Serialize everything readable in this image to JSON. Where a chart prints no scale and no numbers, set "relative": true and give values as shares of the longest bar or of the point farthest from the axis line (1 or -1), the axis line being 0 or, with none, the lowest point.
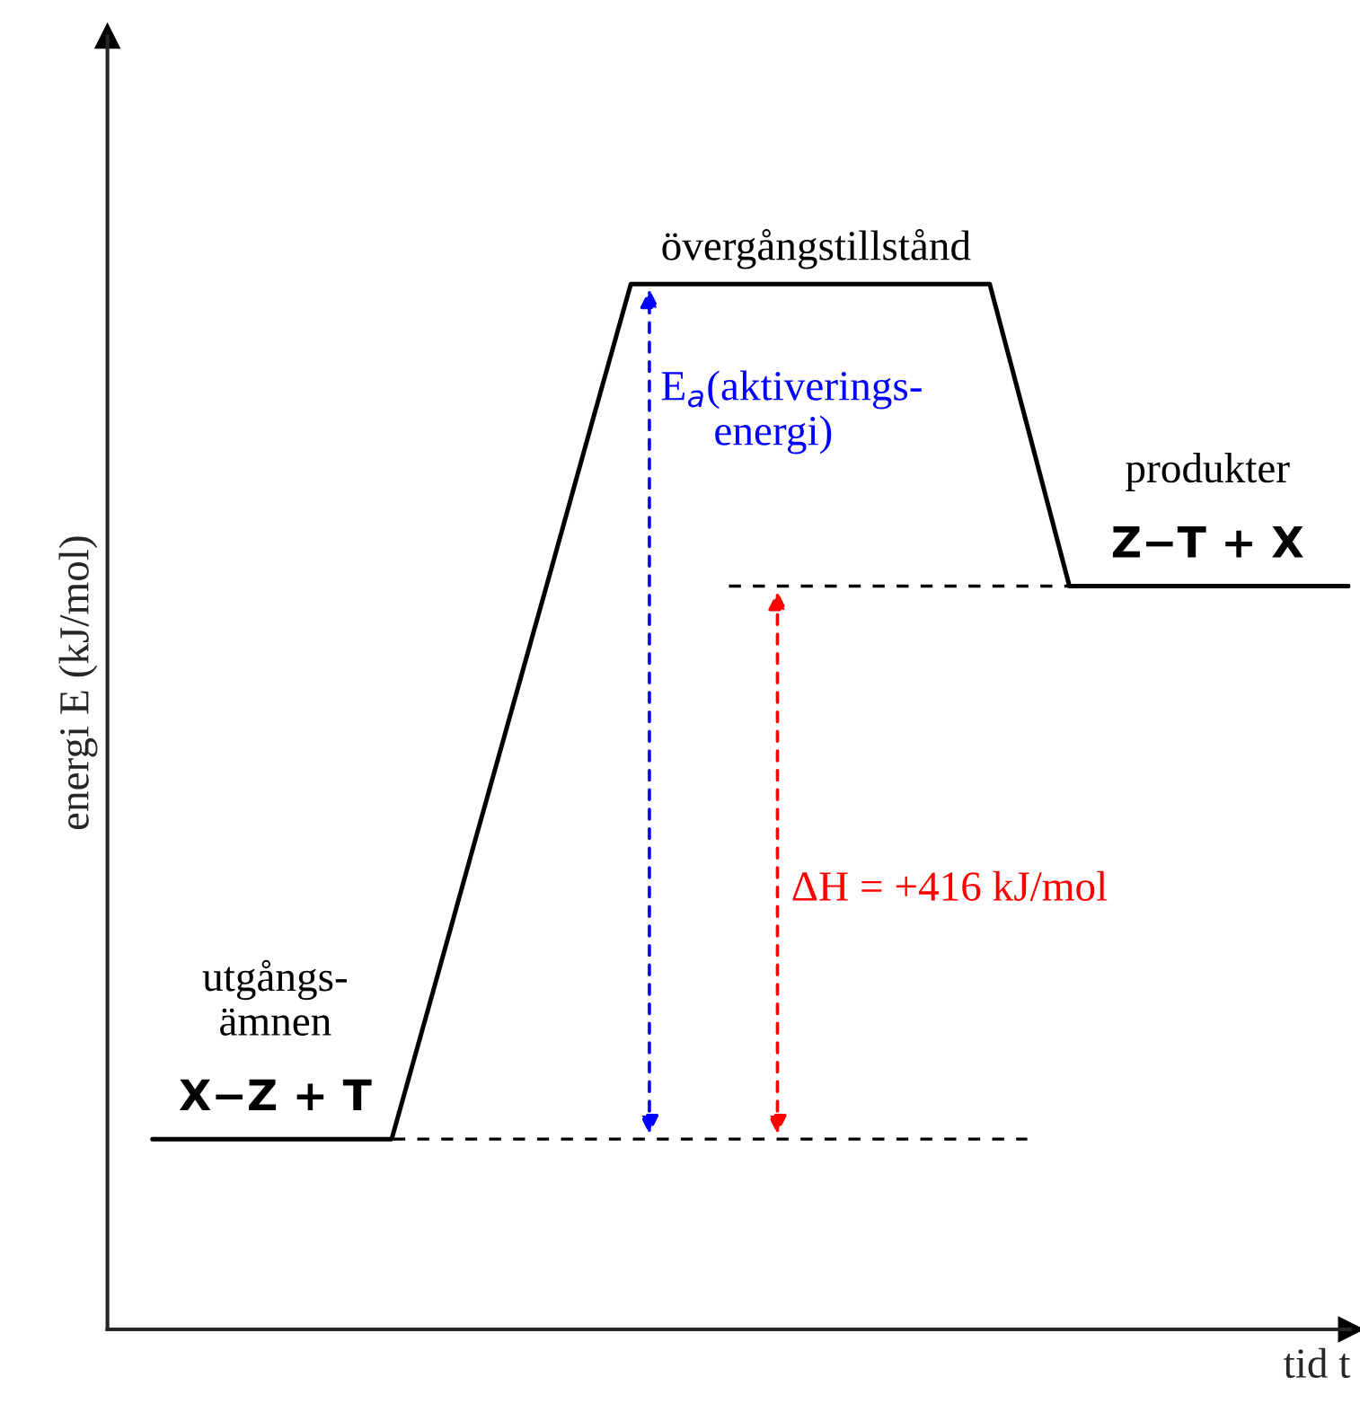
{
  "chart_data": {
    "type": "line",
    "relative": true,
    "color": "#000000",
    "categories": [
      null,
      null,
      null,
      null,
      null,
      null,
      null,
      null,
      null,
      null,
      null,
      null,
      null,
      null,
      null,
      null,
      null,
      null,
      null,
      null,
      null,
      null,
      null,
      null,
      null,
      null,
      null,
      null,
      null,
      null,
      null
    ],
    "values": [
      0.182,
      0.182,
      0.182,
      0.182,
      0.182,
      0.182,
      0.182,
      0.318,
      0.455,
      0.591,
      0.727,
      0.864,
      1,
      1,
      1,
      1,
      1,
      1,
      1,
      1,
      1,
      1,
      0.856,
      0.711,
      0.711,
      0.711,
      0.711,
      0.711,
      0.711,
      0.711,
      0.711
    ],
    "xlabel": "tid t",
    "ylabel": "energi E (kJ/mol)",
    "ref_lines": [
      {
        "axis": "y",
        "value": 0.182,
        "color": "#000000",
        "line_style": "dashed"
      },
      {
        "axis": "y",
        "value": 0.711,
        "color": "#000000",
        "line_style": "dashed"
      }
    ],
    "annotations": [
      "övergångstillstånd",
      "E$_{a}$(aktiverings-\n     energi)",
      "ΔH = +416 kJ/mol",
      "produkter",
      "Z−T + X",
      "utgångs-\nämnen",
      "X−Z + T"
    ]
  }
}
